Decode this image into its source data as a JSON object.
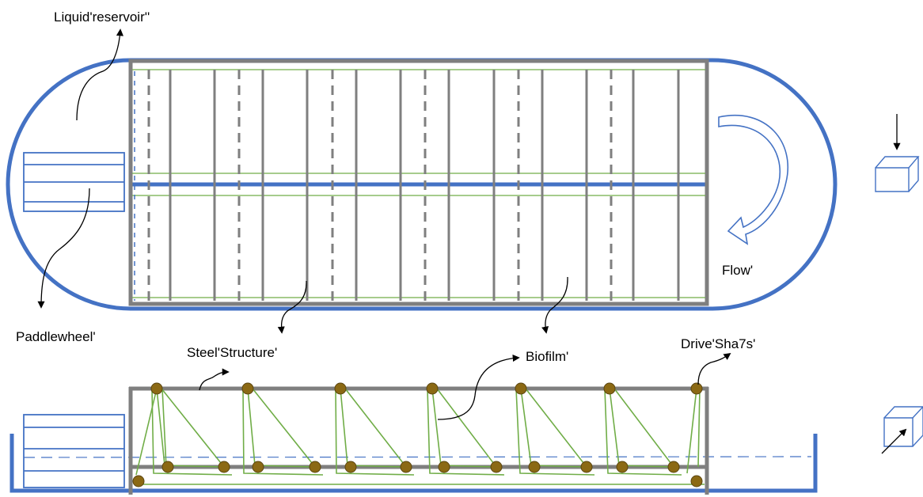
{
  "labels": {
    "liquid_reservoir": "Liquid'reservoir''",
    "paddlewheel": "Paddlewheel'",
    "steel_structure": "Steel'Structure'",
    "biofilm": "Biofilm'",
    "flow": "Flow'",
    "drive_shafts": "Drive'Sha7s'"
  },
  "colors": {
    "tank_blue": "#4472c4",
    "steel_grey": "#7f7f7f",
    "biofilm_green": "#70ad47",
    "shaft_brown": "#8b6914",
    "water_line": "#4472c4"
  },
  "icons": {
    "top_view_cube": "cube-arrow-down-icon",
    "side_view_cube": "cube-arrow-diagonal-icon"
  }
}
